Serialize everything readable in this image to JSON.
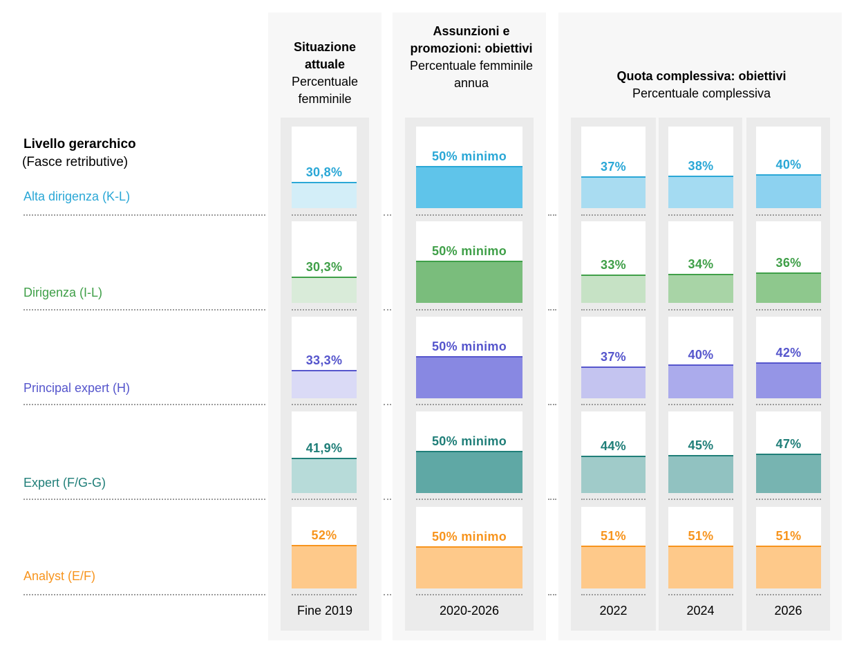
{
  "header": {
    "col1_title": "Situazione attuale",
    "col1_sub": "Percentuale femminile",
    "col2_title": "Assunzioni e promozioni: obiettivi",
    "col2_sub": "Percentuale femminile annua",
    "col3_title": "Quota complessiva: obiettivi",
    "col3_sub": "Percentuale complessiva"
  },
  "side": {
    "title": "Livello gerarchico",
    "subtitle": "(Fasce retributive)"
  },
  "chart_data": {
    "type": "bar",
    "categories": [
      "Fine 2019",
      "2020-2026",
      "2022",
      "2024",
      "2026"
    ],
    "series": [
      {
        "name": "Alta dirigenza (K-L)",
        "color": "#2aa7d6",
        "fills": [
          "#d3eef8",
          "#5fc4ea",
          "#a9dcf1",
          "#a4dbf2",
          "#8dd2f0"
        ],
        "values": [
          30.8,
          50,
          37,
          38,
          40
        ],
        "labels": [
          "30,8%",
          "50% minimo",
          "37%",
          "38%",
          "40%"
        ]
      },
      {
        "name": "Dirigenza (I-L)",
        "color": "#3f9f48",
        "fills": [
          "#d9ebd9",
          "#7abd7c",
          "#c6e2c5",
          "#a8d4a6",
          "#8ec88d"
        ],
        "values": [
          30.3,
          50,
          33,
          34,
          36
        ],
        "labels": [
          "30,3%",
          "50% minimo",
          "33%",
          "34%",
          "36%"
        ]
      },
      {
        "name": "Principal expert (H)",
        "color": "#5555cc",
        "fills": [
          "#dadaf6",
          "#8888e2",
          "#c4c4f0",
          "#ababec",
          "#9595e6"
        ],
        "values": [
          33.3,
          50,
          37,
          40,
          42
        ],
        "labels": [
          "33,3%",
          "50% minimo",
          "37%",
          "40%",
          "42%"
        ]
      },
      {
        "name": "Expert (F/G-G)",
        "color": "#1f7e78",
        "fills": [
          "#b7dbd9",
          "#5fa8a5",
          "#a0cbc9",
          "#91c2c1",
          "#77b4b1"
        ],
        "values": [
          41.9,
          50,
          44,
          45,
          47
        ],
        "labels": [
          "41,9%",
          "50% minimo",
          "44%",
          "45%",
          "47%"
        ]
      },
      {
        "name": "Analyst (E/F)",
        "color": "#f7941d",
        "fills": [
          "#fec98a",
          "#fec98a",
          "#fec98a",
          "#fec98a",
          "#fec98a"
        ],
        "values": [
          52,
          50,
          51,
          51,
          51
        ],
        "labels": [
          "52%",
          "50% minimo",
          "51%",
          "51%",
          "51%"
        ]
      }
    ],
    "ylim": [
      0,
      100
    ]
  }
}
